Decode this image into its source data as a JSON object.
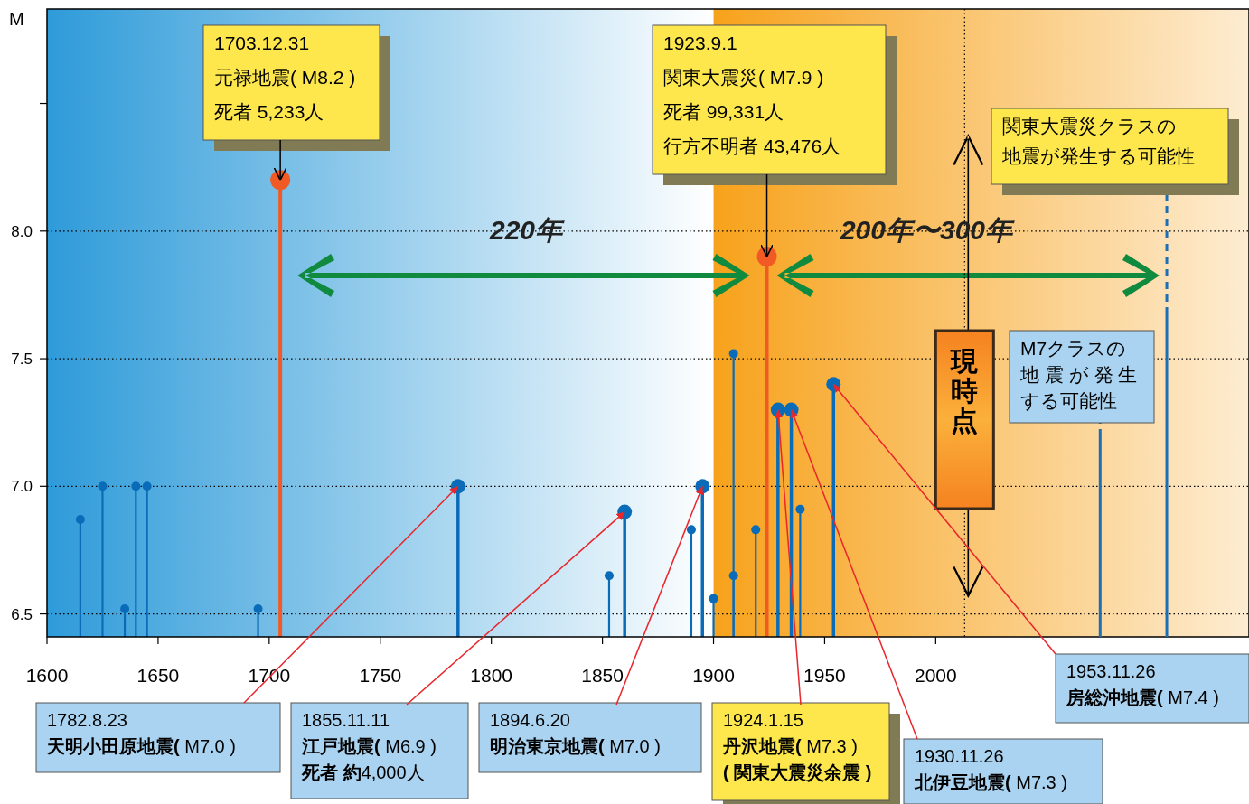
{
  "chart_data": {
    "type": "lollipop",
    "ylabel": "M",
    "marker": "circle",
    "grid": "y",
    "xlim": [
      1600,
      2141
    ],
    "ylim": [
      6.41,
      8.87
    ],
    "xticks": [
      1600,
      1650,
      1700,
      1750,
      1800,
      1850,
      1900,
      1950,
      2000
    ],
    "yticks": [
      {
        "value": 6.5,
        "label": "6.5"
      },
      {
        "value": 7,
        "label": "7.0"
      },
      {
        "value": 7.5,
        "label": "7.5"
      },
      {
        "value": 8,
        "label": "8.0"
      },
      {
        "value": 8.5,
        "label": null
      }
    ],
    "series": [
      {
        "color": "#f15a24",
        "x": [
          1705,
          1924
        ],
        "values": [
          8.2,
          7.9
        ]
      },
      {
        "color": "#0a6cb8",
        "x": [
          1785,
          1860,
          1895,
          1929,
          1935,
          1954
        ],
        "values": [
          7.0,
          6.9,
          7.0,
          7.3,
          7.3,
          7.4
        ]
      },
      {
        "color": "#0a6cb8",
        "x": [
          1615,
          1625,
          1635,
          1640,
          1645,
          1695,
          1853,
          1890,
          1900,
          1909,
          1909,
          1919,
          1939
        ],
        "values": [
          6.87,
          7.0,
          6.52,
          7.0,
          7.0,
          6.52,
          6.65,
          6.83,
          6.56,
          7.52,
          6.65,
          6.83,
          6.91
        ]
      }
    ],
    "bands": [
      {
        "axis": "x",
        "from": 1600,
        "to": 1900,
        "color": "#2e9bd9"
      },
      {
        "axis": "x",
        "from": 1900,
        "to": 2141,
        "color": "#f7a21b"
      }
    ],
    "ref_lines": [
      {
        "axis": "x",
        "value": 2013,
        "label": "現時点",
        "line_style": "dotted"
      }
    ],
    "annotations": [
      "1703.12.31",
      "元禄地震( M8.2 )",
      {
        "text": "死者 5,233人",
        "x": 1705,
        "y": 8.2
      },
      "1923.9.1",
      "関東大震災( M7.9 )",
      "死者 99,331人",
      {
        "text": "行方不明者 43,476人",
        "x": 1924,
        "y": 7.9
      },
      "1782.8.23",
      "**天明小田原地震(** M7.0 )",
      {
        "text": "1855.11.11",
        "x": 1860,
        "y": 6.9
      },
      "**江戸地震(** M6.9 )",
      "**死者 約**4,000人",
      "1894.6.20",
      "**明治東京地震(** M7.0 )",
      {
        "text": "1924.1.15",
        "x": 1929,
        "y": 7.3
      },
      "**丹沢地震(** M7.3 )",
      "**( 関東大震災余震 )**",
      {
        "text": "1930.11.26",
        "x": 1935,
        "y": 7.3
      },
      "**北伊豆地震(** M7.3 )",
      {
        "text": "1953.11.26",
        "x": 1954,
        "y": 7.4
      },
      "**房総沖地震(** M7.4 )",
      "関東大震災クラスの",
      {
        "text": "地震が発生する可能性",
        "x": 2104,
        "y": 6.41
      },
      "M7クラスの",
      "地 震 が 発 生",
      {
        "text": "する可能性",
        "x": 2074,
        "y": 6.41
      },
      "220年",
      "200年〜300年"
    ]
  }
}
